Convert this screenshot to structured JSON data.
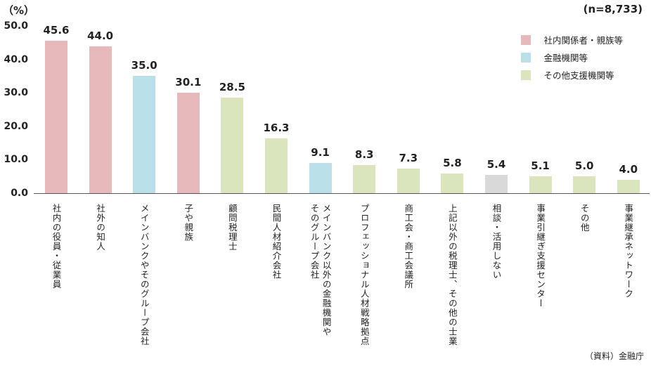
{
  "chart_data": {
    "type": "bar",
    "unit_label": "（%）",
    "sample_size": "(n=8,733)",
    "ylim": [
      0,
      50
    ],
    "yticks": [
      "0.0",
      "10.0",
      "20.0",
      "30.0",
      "40.0",
      "50.0"
    ],
    "grid": false,
    "legend_position": "top-right",
    "legend": [
      {
        "name": "社内関係者・親族等",
        "color": "#e8b9bb"
      },
      {
        "name": "金融機関等",
        "color": "#b9dfe8"
      },
      {
        "name": "その他支援機関等",
        "color": "#dae5bd"
      }
    ],
    "categories": [
      "社内の役員・従業員",
      "社外の知人",
      "メインバンクやそのグループ会社",
      "子や親族",
      "顧問税理士",
      "民間人材紹介会社",
      "メインバンク以外の金融機関や\nそのグループ会社",
      "プロフェッショナル人材戦略拠点",
      "商工会・商工会議所",
      "上記以外の税理士、その他の士業",
      "相談・活用しない",
      "事業引継ぎ支援センター",
      "その他",
      "事業継承ネットワーク"
    ],
    "values": [
      45.6,
      44.0,
      35.0,
      30.1,
      28.5,
      16.3,
      9.1,
      8.3,
      7.3,
      5.8,
      5.4,
      5.1,
      5.0,
      4.0
    ],
    "value_labels": [
      "45.6",
      "44.0",
      "35.0",
      "30.1",
      "28.5",
      "16.3",
      "9.1",
      "8.3",
      "7.3",
      "5.8",
      "5.4",
      "5.1",
      "5.0",
      "4.0"
    ],
    "bar_colors": [
      "#e8b9bb",
      "#e8b9bb",
      "#b9dfe8",
      "#e8b9bb",
      "#dae5bd",
      "#dae5bd",
      "#b9dfe8",
      "#dae5bd",
      "#dae5bd",
      "#dae5bd",
      "#d9d9d9",
      "#dae5bd",
      "#dae5bd",
      "#dae5bd"
    ],
    "source": "（資料）金融庁"
  }
}
